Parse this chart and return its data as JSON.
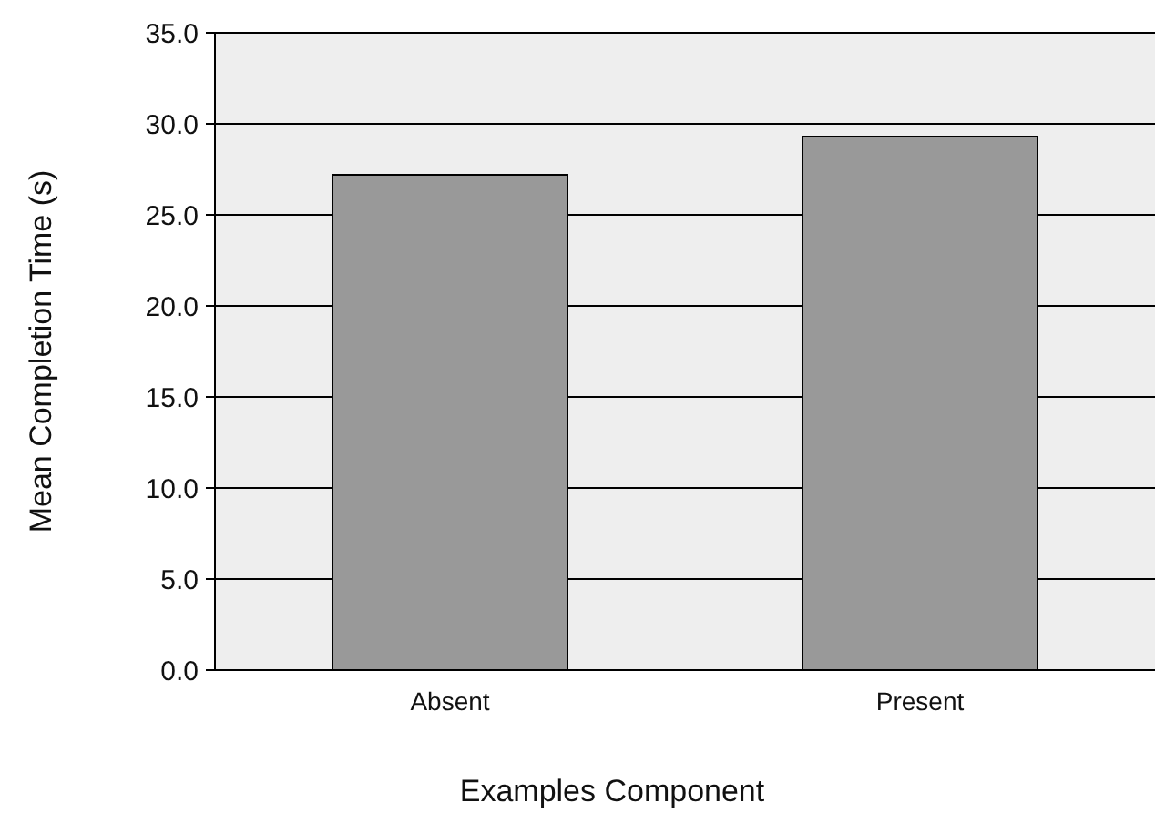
{
  "chart_data": {
    "type": "bar",
    "xlabel": "Examples Component",
    "ylabel": "Mean Completion Time (s)",
    "categories": [
      "Absent",
      "Present"
    ],
    "values": [
      27.2,
      29.3
    ],
    "color": "#999999",
    "ylim": [
      0,
      35
    ],
    "yticks": [
      {
        "value": 0,
        "label": "0.0"
      },
      {
        "value": 5,
        "label": "5.0"
      },
      {
        "value": 10,
        "label": "10.0"
      },
      {
        "value": 15,
        "label": "15.0"
      },
      {
        "value": 20,
        "label": "20.0"
      },
      {
        "value": 25,
        "label": "25.0"
      },
      {
        "value": 30,
        "label": "30.0"
      },
      {
        "value": 35,
        "label": "35.0"
      }
    ],
    "grid": "y"
  }
}
